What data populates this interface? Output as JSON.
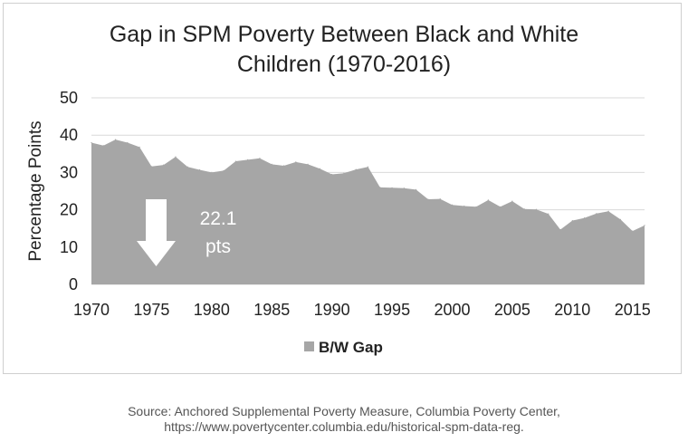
{
  "chart_data": {
    "type": "area",
    "title_lines": [
      "Gap in SPM Poverty Between Black and White",
      "Children (1970-2016)"
    ],
    "xlabel": "",
    "ylabel": "Percentage Points",
    "xlim": [
      1970,
      2016
    ],
    "ylim": [
      0,
      50
    ],
    "y_ticks": [
      "0",
      "10",
      "20",
      "30",
      "40",
      "50"
    ],
    "x_ticks": [
      "1970",
      "1975",
      "1980",
      "1985",
      "1990",
      "1995",
      "2000",
      "2005",
      "2010",
      "2015"
    ],
    "grid": "horizontal",
    "legend_position": "bottom",
    "series": [
      {
        "name": "B/W Gap",
        "color": "#a6a6a6",
        "x": [
          1970,
          1971,
          1972,
          1973,
          1974,
          1975,
          1976,
          1977,
          1978,
          1979,
          1980,
          1981,
          1982,
          1983,
          1984,
          1985,
          1986,
          1987,
          1988,
          1989,
          1990,
          1991,
          1992,
          1993,
          1994,
          1995,
          1996,
          1997,
          1998,
          1999,
          2000,
          2001,
          2002,
          2003,
          2004,
          2005,
          2006,
          2007,
          2008,
          2009,
          2010,
          2011,
          2012,
          2013,
          2014,
          2015,
          2016
        ],
        "values": [
          38.0,
          37.2,
          38.8,
          38.0,
          36.8,
          31.6,
          32.0,
          34.2,
          31.5,
          30.7,
          30.0,
          30.5,
          33.0,
          33.4,
          33.8,
          32.2,
          31.8,
          32.8,
          32.2,
          31.0,
          29.5,
          29.8,
          30.8,
          31.5,
          26.0,
          25.9,
          25.8,
          25.4,
          22.8,
          22.9,
          21.3,
          21.0,
          20.8,
          22.6,
          20.8,
          22.3,
          20.2,
          20.1,
          18.9,
          14.7,
          17.1,
          17.8,
          19.0,
          19.6,
          17.4,
          14.3,
          15.8
        ]
      }
    ],
    "annotation": {
      "lines": [
        "22.1",
        "pts"
      ]
    }
  },
  "source": {
    "line1": "Source: Anchored Supplemental Poverty Measure, Columbia Poverty Center,",
    "line2": "https://www.povertycenter.columbia.edu/historical-spm-data-reg."
  }
}
